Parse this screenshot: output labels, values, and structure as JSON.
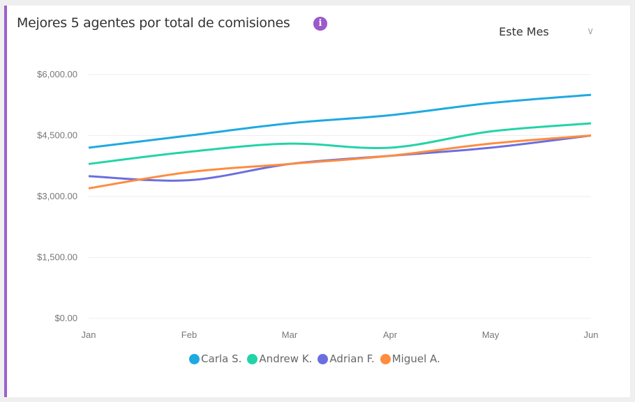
{
  "card": {
    "title": "Mejores 5 agentes por total de comisiones",
    "info_icon": "info-icon",
    "period": {
      "selected": "Este Mes",
      "icon": "chevron-down-icon"
    }
  },
  "chart_data": {
    "type": "line",
    "categories": [
      "Jan",
      "Feb",
      "Mar",
      "Apr",
      "May",
      "Jun"
    ],
    "ylim": [
      0,
      6000
    ],
    "yticks": [
      0,
      1500,
      3000,
      4500,
      6000
    ],
    "ytick_labels": [
      "$0.00",
      "$1,500.00",
      "$3,000.00",
      "$4,500.00",
      "$6,000.00"
    ],
    "grid": true,
    "legend_position": "bottom",
    "series": [
      {
        "name": "Carla S.",
        "color": "#1ea9e1",
        "values": [
          4200,
          4500,
          4800,
          5000,
          5300,
          5500
        ]
      },
      {
        "name": "Andrew K.",
        "color": "#22d3a7",
        "values": [
          3800,
          4100,
          4300,
          4200,
          4600,
          4800
        ]
      },
      {
        "name": "Adrian F.",
        "color": "#6b6ee0",
        "values": [
          3500,
          3400,
          3800,
          4000,
          4200,
          4500
        ]
      },
      {
        "name": "Miguel A.",
        "color": "#ff8c3f",
        "values": [
          3200,
          3600,
          3800,
          4000,
          4300,
          4500
        ]
      }
    ]
  }
}
